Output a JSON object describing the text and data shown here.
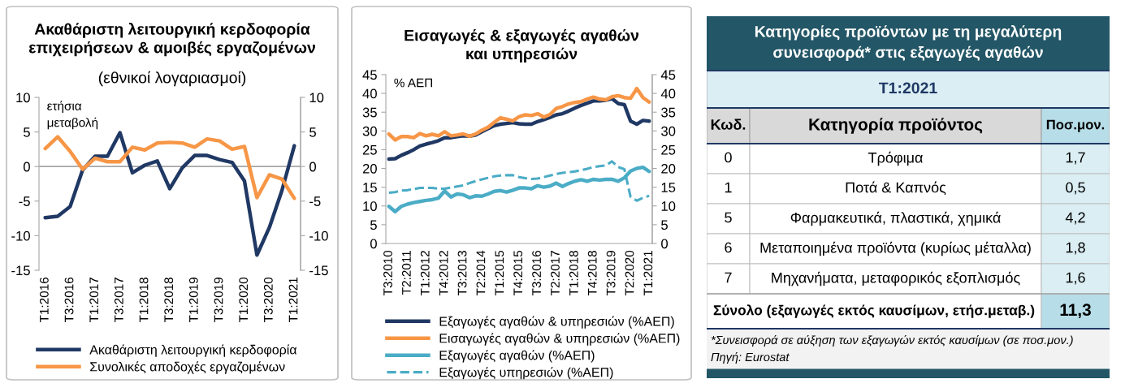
{
  "chart_data": [
    {
      "type": "line",
      "title": "Ακαθάριστη λειτουργική κερδοφορία\nεπιχειρήσεων & αμοιβές εργαζομένων",
      "subtitle": "(εθνικοί λογαριασμοί)",
      "ylabel": "ετήσια\nμεταβολή",
      "categories": [
        "T1:2016",
        null,
        "T3:2016",
        null,
        "T1:2017",
        null,
        "T3:2017",
        null,
        "T1:2018",
        null,
        "T3:2018",
        null,
        "T1:2019",
        null,
        "T3:2019",
        null,
        "T1:2020",
        null,
        "T3:2020",
        null,
        "T1:2021"
      ],
      "series": [
        {
          "name": "Ακαθάριστη λειτουργική κερδοφορία",
          "color": "#203864",
          "values": [
            -7.4,
            -7.2,
            -5.8,
            -0.5,
            1.5,
            1.5,
            4.9,
            -0.9,
            0.2,
            0.8,
            -3.2,
            -0.2,
            1.6,
            1.6,
            1.0,
            0.6,
            -2.1,
            -12.8,
            -8.8,
            -3.5,
            3.0
          ]
        },
        {
          "name": "Συνολικές αποδοχές εργαζομένων",
          "color": "#f79646",
          "values": [
            2.6,
            4.3,
            2.2,
            -0.4,
            1.2,
            0.7,
            0.7,
            2.8,
            2.4,
            3.4,
            3.5,
            3.4,
            2.8,
            4.0,
            3.7,
            2.5,
            2.9,
            -4.5,
            -1.2,
            -1.8,
            -4.6
          ]
        }
      ],
      "ylim": [
        -15,
        10
      ],
      "yticks": [
        -15,
        -10,
        -5,
        0,
        5,
        10
      ],
      "y2lim": [
        -15,
        10
      ],
      "y2ticks": [
        -15,
        -10,
        -5,
        0,
        5,
        10
      ],
      "ref_lines": [
        {
          "axis": "y",
          "value": 0,
          "color": "#a6a6a6"
        }
      ],
      "grid": false,
      "legend": "bottom",
      "marker": "none",
      "line_style": "solid"
    },
    {
      "type": "line",
      "title": "Εισαγωγές & εξαγωγές αγαθών\nκαι υπηρεσιών",
      "ylabel": "% ΑΕΠ",
      "categories": [
        "T3:2010",
        null,
        null,
        "T2:2011",
        null,
        null,
        "T1:2012",
        null,
        null,
        "T4:2012",
        null,
        null,
        "T3:2013",
        null,
        null,
        "T2:2014",
        null,
        null,
        "T1:2015",
        null,
        null,
        "T4:2015",
        null,
        null,
        "T3:2016",
        null,
        null,
        "T2:2017",
        null,
        null,
        "T1:2018",
        null,
        null,
        "T4:2018",
        null,
        null,
        "T3:2019",
        null,
        null,
        "T2:2020",
        null,
        null,
        "T1:2021"
      ],
      "series": [
        {
          "name": "Εξαγωγές αγαθών & υπηρεσιών (%ΑΕΠ)",
          "color": "#203864",
          "values": [
            22.5,
            22.6,
            23.5,
            24.2,
            25.0,
            26.0,
            26.5,
            26.9,
            27.4,
            28.2,
            28.2,
            28.5,
            28.7,
            28.6,
            28.9,
            29.8,
            30.6,
            31.4,
            31.8,
            32.0,
            32.2,
            31.9,
            31.8,
            31.8,
            32.5,
            33.0,
            33.6,
            34.3,
            34.6,
            35.3,
            36.1,
            36.8,
            37.4,
            38.0,
            38.0,
            38.2,
            38.6,
            37.3,
            37.0,
            32.6,
            31.8,
            32.8,
            32.6
          ]
        },
        {
          "name": "Εισαγωγές αγαθών & υπηρεσιών (%ΑΕΠ)",
          "color": "#f79646",
          "values": [
            29.2,
            27.6,
            28.5,
            28.5,
            28.2,
            29.3,
            28.7,
            29.1,
            28.7,
            29.8,
            28.7,
            28.9,
            29.2,
            28.6,
            29.2,
            30.2,
            31.0,
            32.3,
            33.5,
            33.1,
            32.7,
            33.8,
            34.3,
            34.1,
            34.6,
            33.7,
            34.4,
            36.0,
            36.5,
            37.2,
            37.6,
            37.8,
            38.5,
            39.0,
            38.5,
            38.3,
            39.1,
            39.4,
            38.9,
            38.7,
            41.3,
            38.9,
            37.7
          ]
        },
        {
          "name": "Εξαγωγές αγαθών (%ΑΕΠ)",
          "color": "#4bacc6",
          "values": [
            9.9,
            8.5,
            9.9,
            10.5,
            10.9,
            11.2,
            11.5,
            11.7,
            12.1,
            14.0,
            12.4,
            13.2,
            13.0,
            12.2,
            12.7,
            12.6,
            13.2,
            13.9,
            14.1,
            13.7,
            14.2,
            14.8,
            14.8,
            14.6,
            15.4,
            15.0,
            15.3,
            16.1,
            15.2,
            16.0,
            16.6,
            17.0,
            16.6,
            17.1,
            16.9,
            17.1,
            17.1,
            16.6,
            17.5,
            19.3,
            20.0,
            20.3,
            19.2
          ]
        },
        {
          "name": "Εξαγωγές υπηρεσιών (%ΑΕΠ)",
          "color": "#4bacc6",
          "line_style": "dashed",
          "values": [
            13.5,
            13.7,
            14.1,
            14.2,
            14.5,
            14.8,
            14.8,
            14.8,
            14.6,
            14.6,
            14.9,
            15.2,
            15.5,
            16.1,
            16.6,
            17.1,
            17.5,
            17.9,
            18.1,
            18.2,
            18.2,
            17.7,
            17.4,
            17.2,
            17.3,
            17.7,
            18.1,
            18.5,
            18.8,
            19.0,
            19.2,
            19.5,
            19.9,
            20.4,
            20.6,
            20.8,
            21.9,
            20.4,
            19.8,
            12.4,
            11.4,
            12.2,
            12.7
          ]
        }
      ],
      "ylim": [
        0,
        45
      ],
      "yticks": [
        0,
        5,
        10,
        15,
        20,
        25,
        30,
        35,
        40,
        45
      ],
      "y2lim": [
        0,
        45
      ],
      "y2ticks": [
        0,
        5,
        10,
        15,
        20,
        25,
        30,
        35,
        40,
        45
      ],
      "grid": false,
      "legend": "bottom",
      "marker": "none",
      "line_style": "solid"
    },
    {
      "type": "other",
      "title": "Κατηγορίες προϊόντων με τη μεγαλύτερη\nσυνεισφορά* στις εξαγωγές αγαθών",
      "subtitle": "T1:2021",
      "ylabel": "Κωδ.",
      "xlabel": "Κατηγορία προϊόντος",
      "y2label": "Ποσ.μον.",
      "categories": [
        "Τρόφιμα",
        "Ποτά & Καπνός",
        "Φαρμακευτικά, πλαστικά, χημικά",
        "Μεταποιημένα προϊόντα (κυρίως μέταλλα)",
        "Μηχανήματα, μεταφορικός εξοπλισμός",
        "Σύνολο (εξαγωγές εκτός καυσίμων, ετήσ.μεταβ.)"
      ],
      "value_labels": [
        "1,7",
        "0,5",
        "4,2",
        "1,8",
        "1,6",
        "11,3"
      ],
      "annotations": [
        {
          "text": "0",
          "y": "Τρόφιμα"
        },
        {
          "text": "1",
          "y": "Ποτά & Καπνός"
        },
        {
          "text": "5",
          "y": "Φαρμακευτικά, πλαστικά, χημικά"
        },
        {
          "text": "6",
          "y": "Μεταποιημένα προϊόντα (κυρίως μέταλλα)"
        },
        {
          "text": "7",
          "y": "Μηχανήματα, μεταφορικός εξοπλισμός"
        },
        "*Συνεισφορά σε αύξηση των εξαγωγών εκτός καυσίμων (σε ποσ.μον.)",
        "Πηγή: Eurostat"
      ]
    }
  ]
}
